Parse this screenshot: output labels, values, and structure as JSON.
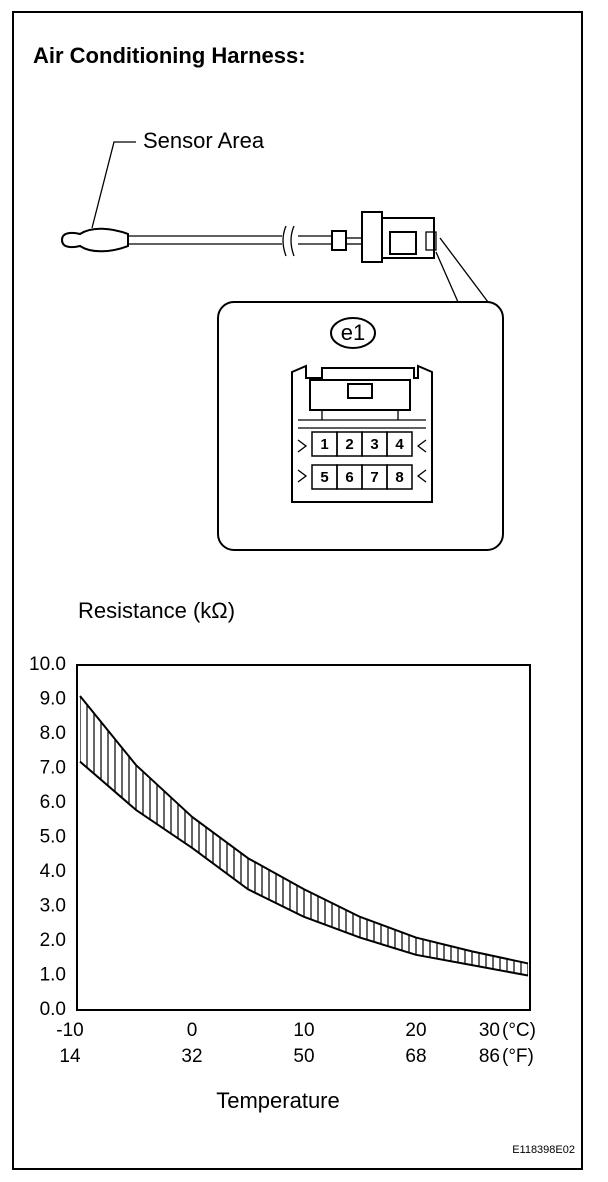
{
  "header": {
    "title": "Air Conditioning Harness:"
  },
  "diagram": {
    "sensor_label": "Sensor Area",
    "connector_id": "e1",
    "pins": [
      "1",
      "2",
      "3",
      "4",
      "5",
      "6",
      "7",
      "8"
    ]
  },
  "chart_data": {
    "type": "line",
    "title": "Resistance (kΩ)",
    "x_label": "Temperature",
    "x": [
      -10,
      -5,
      0,
      5,
      10,
      15,
      20,
      25,
      30
    ],
    "series": [
      {
        "color": "#000000",
        "values": [
          9.1,
          7.1,
          5.6,
          4.4,
          3.5,
          2.7,
          2.1,
          1.7,
          1.35
        ]
      },
      {
        "color": "#000000",
        "values": [
          7.2,
          5.8,
          4.7,
          3.5,
          2.7,
          2.1,
          1.6,
          1.3,
          1.0
        ]
      }
    ],
    "band_hatched": true,
    "xlim": [
      -10,
      30
    ],
    "xticks": [
      -10,
      0,
      10,
      20,
      30
    ],
    "x_unit": "(°C)",
    "x2ticks": [
      14,
      32,
      50,
      68,
      86
    ],
    "x2_unit": "(°F)",
    "ylim": [
      0,
      10
    ],
    "yticks": [
      {
        "value": 0,
        "label": "0.0"
      },
      {
        "value": 1,
        "label": "1.0"
      },
      {
        "value": 2,
        "label": "2.0"
      },
      {
        "value": 3,
        "label": "3.0"
      },
      {
        "value": 4,
        "label": "4.0"
      },
      {
        "value": 5,
        "label": "5.0"
      },
      {
        "value": 6,
        "label": "6.0"
      },
      {
        "value": 7,
        "label": "7.0"
      },
      {
        "value": 8,
        "label": "8.0"
      },
      {
        "value": 9,
        "label": "9.0"
      },
      {
        "value": 10,
        "label": "10.0"
      }
    ]
  },
  "footer": {
    "code": "E118398E02"
  }
}
